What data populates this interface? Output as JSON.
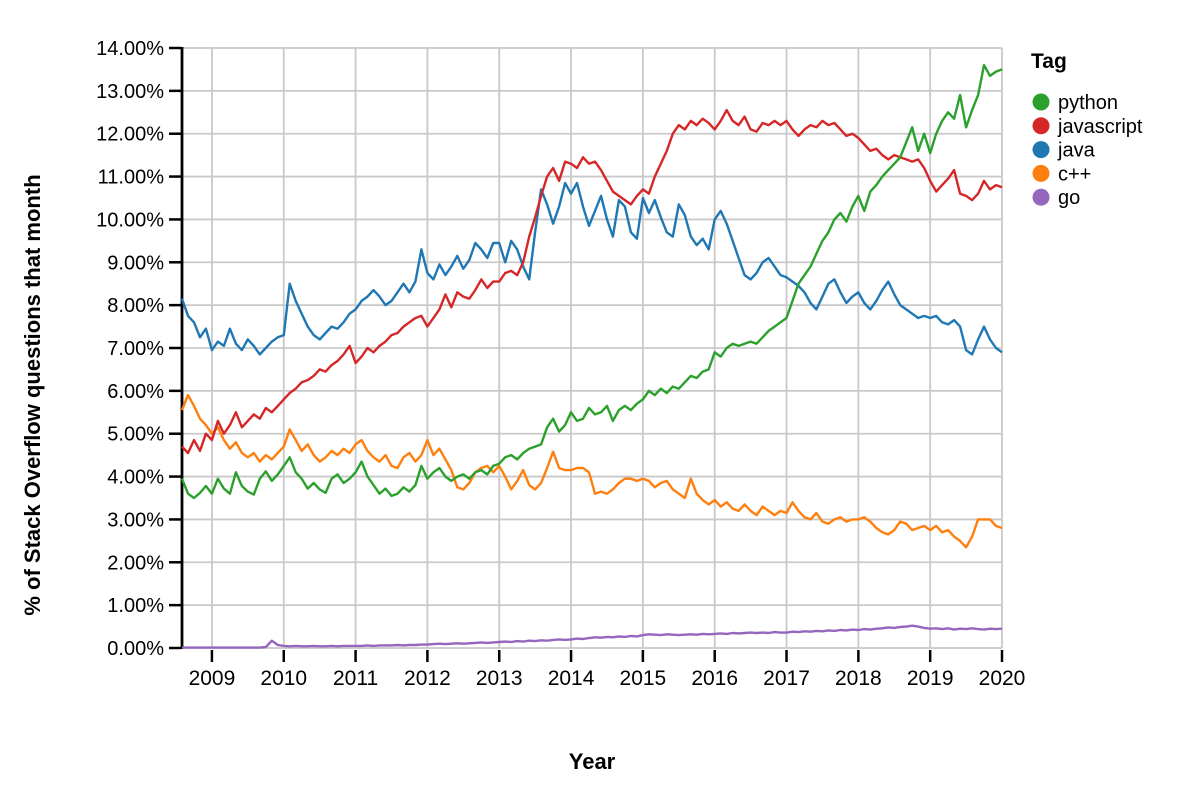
{
  "chart_data": {
    "type": "line",
    "title": "",
    "xlabel": "Year",
    "ylabel": "% of Stack Overflow questions that month",
    "legend_title": "Tag",
    "legend_position": "top-right",
    "grid": true,
    "x_start": 2008.5833,
    "x_step": 0.083333,
    "xlim": [
      2008.5833,
      2020.0
    ],
    "ylim": [
      0,
      14
    ],
    "x_tick_values": [
      2009,
      2010,
      2011,
      2012,
      2013,
      2014,
      2015,
      2016,
      2017,
      2018,
      2019,
      2020
    ],
    "x_tick_labels": [
      "2009",
      "2010",
      "2011",
      "2012",
      "2013",
      "2014",
      "2015",
      "2016",
      "2017",
      "2018",
      "2019",
      "2020"
    ],
    "y_tick_values": [
      0,
      1,
      2,
      3,
      4,
      5,
      6,
      7,
      8,
      9,
      10,
      11,
      12,
      13,
      14
    ],
    "y_tick_labels": [
      "0.00%",
      "1.00%",
      "2.00%",
      "3.00%",
      "4.00%",
      "5.00%",
      "6.00%",
      "7.00%",
      "8.00%",
      "9.00%",
      "10.00%",
      "11.00%",
      "12.00%",
      "13.00%",
      "14.00%"
    ],
    "series": [
      {
        "name": "python",
        "color": "#2ca02c",
        "values": [
          3.95,
          3.6,
          3.5,
          3.62,
          3.78,
          3.6,
          3.95,
          3.72,
          3.6,
          4.1,
          3.78,
          3.65,
          3.58,
          3.95,
          4.12,
          3.9,
          4.05,
          4.25,
          4.45,
          4.1,
          3.95,
          3.72,
          3.85,
          3.7,
          3.62,
          3.95,
          4.05,
          3.85,
          3.95,
          4.1,
          4.35,
          4.0,
          3.8,
          3.6,
          3.72,
          3.55,
          3.6,
          3.75,
          3.65,
          3.8,
          4.25,
          3.95,
          4.1,
          4.2,
          4.0,
          3.9,
          4.0,
          4.05,
          3.95,
          4.1,
          4.15,
          4.05,
          4.25,
          4.3,
          4.45,
          4.5,
          4.4,
          4.55,
          4.65,
          4.7,
          4.75,
          5.15,
          5.35,
          5.05,
          5.2,
          5.5,
          5.3,
          5.35,
          5.6,
          5.45,
          5.5,
          5.65,
          5.3,
          5.55,
          5.65,
          5.55,
          5.7,
          5.8,
          6.0,
          5.9,
          6.05,
          5.95,
          6.1,
          6.05,
          6.2,
          6.35,
          6.3,
          6.45,
          6.5,
          6.9,
          6.8,
          7.0,
          7.1,
          7.05,
          7.1,
          7.15,
          7.1,
          7.25,
          7.4,
          7.5,
          7.6,
          7.7,
          8.1,
          8.5,
          8.7,
          8.9,
          9.2,
          9.5,
          9.7,
          10.0,
          10.15,
          9.95,
          10.3,
          10.55,
          10.2,
          10.65,
          10.8,
          11.0,
          11.15,
          11.3,
          11.45,
          11.8,
          12.15,
          11.6,
          12.0,
          11.55,
          12.0,
          12.3,
          12.5,
          12.35,
          12.9,
          12.15,
          12.55,
          12.9,
          13.6,
          13.35,
          13.45,
          13.5
        ]
      },
      {
        "name": "javascript",
        "color": "#d62728",
        "values": [
          4.7,
          4.55,
          4.85,
          4.6,
          5.0,
          4.85,
          5.3,
          5.0,
          5.2,
          5.5,
          5.15,
          5.3,
          5.45,
          5.35,
          5.6,
          5.5,
          5.65,
          5.8,
          5.95,
          6.05,
          6.2,
          6.25,
          6.35,
          6.5,
          6.45,
          6.6,
          6.7,
          6.85,
          7.05,
          6.65,
          6.8,
          7.0,
          6.9,
          7.05,
          7.15,
          7.3,
          7.35,
          7.5,
          7.6,
          7.7,
          7.75,
          7.5,
          7.7,
          7.9,
          8.25,
          7.95,
          8.3,
          8.2,
          8.15,
          8.35,
          8.6,
          8.4,
          8.55,
          8.55,
          8.75,
          8.8,
          8.7,
          9.0,
          9.6,
          10.05,
          10.55,
          11.0,
          11.2,
          10.9,
          11.35,
          11.3,
          11.2,
          11.45,
          11.3,
          11.35,
          11.15,
          10.9,
          10.65,
          10.55,
          10.45,
          10.35,
          10.55,
          10.7,
          10.6,
          11.0,
          11.3,
          11.6,
          12.0,
          12.2,
          12.1,
          12.3,
          12.2,
          12.35,
          12.25,
          12.1,
          12.3,
          12.55,
          12.3,
          12.2,
          12.4,
          12.1,
          12.05,
          12.25,
          12.2,
          12.3,
          12.2,
          12.3,
          12.1,
          11.95,
          12.1,
          12.2,
          12.15,
          12.3,
          12.2,
          12.25,
          12.1,
          11.95,
          12.0,
          11.9,
          11.75,
          11.6,
          11.65,
          11.5,
          11.4,
          11.5,
          11.45,
          11.4,
          11.35,
          11.4,
          11.2,
          10.9,
          10.65,
          10.8,
          10.95,
          11.15,
          10.6,
          10.55,
          10.45,
          10.6,
          10.9,
          10.7,
          10.8,
          10.75
        ]
      },
      {
        "name": "java",
        "color": "#1f77b4",
        "values": [
          8.15,
          7.75,
          7.6,
          7.25,
          7.45,
          6.95,
          7.15,
          7.05,
          7.45,
          7.1,
          6.95,
          7.2,
          7.05,
          6.85,
          7.0,
          7.15,
          7.25,
          7.3,
          8.5,
          8.1,
          7.8,
          7.5,
          7.3,
          7.2,
          7.35,
          7.5,
          7.45,
          7.6,
          7.8,
          7.9,
          8.1,
          8.2,
          8.35,
          8.2,
          8.0,
          8.1,
          8.3,
          8.5,
          8.3,
          8.55,
          9.3,
          8.75,
          8.6,
          8.95,
          8.7,
          8.9,
          9.15,
          8.85,
          9.05,
          9.45,
          9.3,
          9.1,
          9.45,
          9.45,
          9.0,
          9.5,
          9.3,
          8.9,
          8.6,
          9.7,
          10.7,
          10.35,
          9.9,
          10.3,
          10.85,
          10.6,
          10.85,
          10.3,
          9.85,
          10.2,
          10.55,
          10.0,
          9.6,
          10.45,
          10.3,
          9.7,
          9.55,
          10.5,
          10.15,
          10.45,
          10.05,
          9.7,
          9.6,
          10.35,
          10.1,
          9.6,
          9.4,
          9.55,
          9.3,
          10.0,
          10.2,
          9.9,
          9.5,
          9.1,
          8.7,
          8.6,
          8.75,
          9.0,
          9.1,
          8.9,
          8.7,
          8.65,
          8.55,
          8.45,
          8.3,
          8.05,
          7.9,
          8.2,
          8.5,
          8.6,
          8.3,
          8.05,
          8.2,
          8.3,
          8.05,
          7.9,
          8.1,
          8.35,
          8.55,
          8.25,
          8.0,
          7.9,
          7.8,
          7.7,
          7.75,
          7.7,
          7.75,
          7.6,
          7.55,
          7.65,
          7.5,
          6.95,
          6.85,
          7.2,
          7.5,
          7.2,
          7.0,
          6.9
        ]
      },
      {
        "name": "c++",
        "color": "#ff7f0e",
        "values": [
          5.55,
          5.9,
          5.65,
          5.35,
          5.2,
          5.0,
          5.15,
          4.85,
          4.65,
          4.8,
          4.55,
          4.45,
          4.55,
          4.35,
          4.5,
          4.4,
          4.55,
          4.7,
          5.1,
          4.85,
          4.6,
          4.75,
          4.5,
          4.35,
          4.45,
          4.6,
          4.5,
          4.65,
          4.55,
          4.75,
          4.85,
          4.6,
          4.45,
          4.35,
          4.5,
          4.25,
          4.2,
          4.45,
          4.55,
          4.35,
          4.5,
          4.85,
          4.5,
          4.65,
          4.4,
          4.15,
          3.75,
          3.7,
          3.85,
          4.1,
          4.2,
          4.25,
          4.1,
          4.25,
          4.0,
          3.7,
          3.9,
          4.15,
          3.8,
          3.7,
          3.85,
          4.2,
          4.58,
          4.2,
          4.15,
          4.15,
          4.2,
          4.2,
          4.1,
          3.6,
          3.65,
          3.6,
          3.7,
          3.85,
          3.95,
          3.95,
          3.9,
          3.95,
          3.9,
          3.75,
          3.85,
          3.9,
          3.7,
          3.6,
          3.5,
          3.95,
          3.6,
          3.45,
          3.35,
          3.45,
          3.3,
          3.4,
          3.25,
          3.2,
          3.35,
          3.2,
          3.1,
          3.3,
          3.2,
          3.1,
          3.2,
          3.15,
          3.4,
          3.2,
          3.05,
          3.0,
          3.15,
          2.95,
          2.9,
          3.0,
          3.05,
          2.95,
          3.0,
          3.0,
          3.05,
          2.95,
          2.8,
          2.7,
          2.65,
          2.75,
          2.95,
          2.9,
          2.75,
          2.8,
          2.85,
          2.75,
          2.85,
          2.7,
          2.75,
          2.6,
          2.5,
          2.35,
          2.6,
          3.0,
          3.0,
          3.0,
          2.85,
          2.8
        ]
      },
      {
        "name": "go",
        "color": "#9467bd",
        "values": [
          0.01,
          0.01,
          0.01,
          0.01,
          0.01,
          0.01,
          0.01,
          0.01,
          0.01,
          0.01,
          0.01,
          0.01,
          0.01,
          0.01,
          0.02,
          0.17,
          0.07,
          0.05,
          0.04,
          0.05,
          0.04,
          0.04,
          0.05,
          0.04,
          0.04,
          0.05,
          0.04,
          0.05,
          0.05,
          0.05,
          0.05,
          0.06,
          0.05,
          0.06,
          0.06,
          0.06,
          0.07,
          0.06,
          0.07,
          0.07,
          0.08,
          0.08,
          0.09,
          0.1,
          0.09,
          0.1,
          0.11,
          0.1,
          0.11,
          0.12,
          0.13,
          0.12,
          0.13,
          0.14,
          0.15,
          0.14,
          0.16,
          0.15,
          0.17,
          0.16,
          0.18,
          0.17,
          0.19,
          0.2,
          0.19,
          0.2,
          0.22,
          0.21,
          0.23,
          0.25,
          0.24,
          0.26,
          0.25,
          0.27,
          0.26,
          0.28,
          0.27,
          0.3,
          0.32,
          0.31,
          0.3,
          0.32,
          0.31,
          0.3,
          0.31,
          0.32,
          0.31,
          0.33,
          0.32,
          0.33,
          0.34,
          0.33,
          0.35,
          0.34,
          0.35,
          0.36,
          0.35,
          0.36,
          0.35,
          0.37,
          0.36,
          0.36,
          0.38,
          0.37,
          0.39,
          0.38,
          0.4,
          0.39,
          0.41,
          0.4,
          0.42,
          0.41,
          0.43,
          0.42,
          0.44,
          0.43,
          0.45,
          0.46,
          0.48,
          0.47,
          0.49,
          0.5,
          0.52,
          0.5,
          0.47,
          0.45,
          0.46,
          0.44,
          0.46,
          0.43,
          0.45,
          0.44,
          0.46,
          0.44,
          0.43,
          0.45,
          0.44,
          0.45
        ]
      }
    ]
  },
  "colors": {
    "background": "#ffffff",
    "grid": "#c9c9c9",
    "axis": "#000000",
    "text": "#000000"
  }
}
